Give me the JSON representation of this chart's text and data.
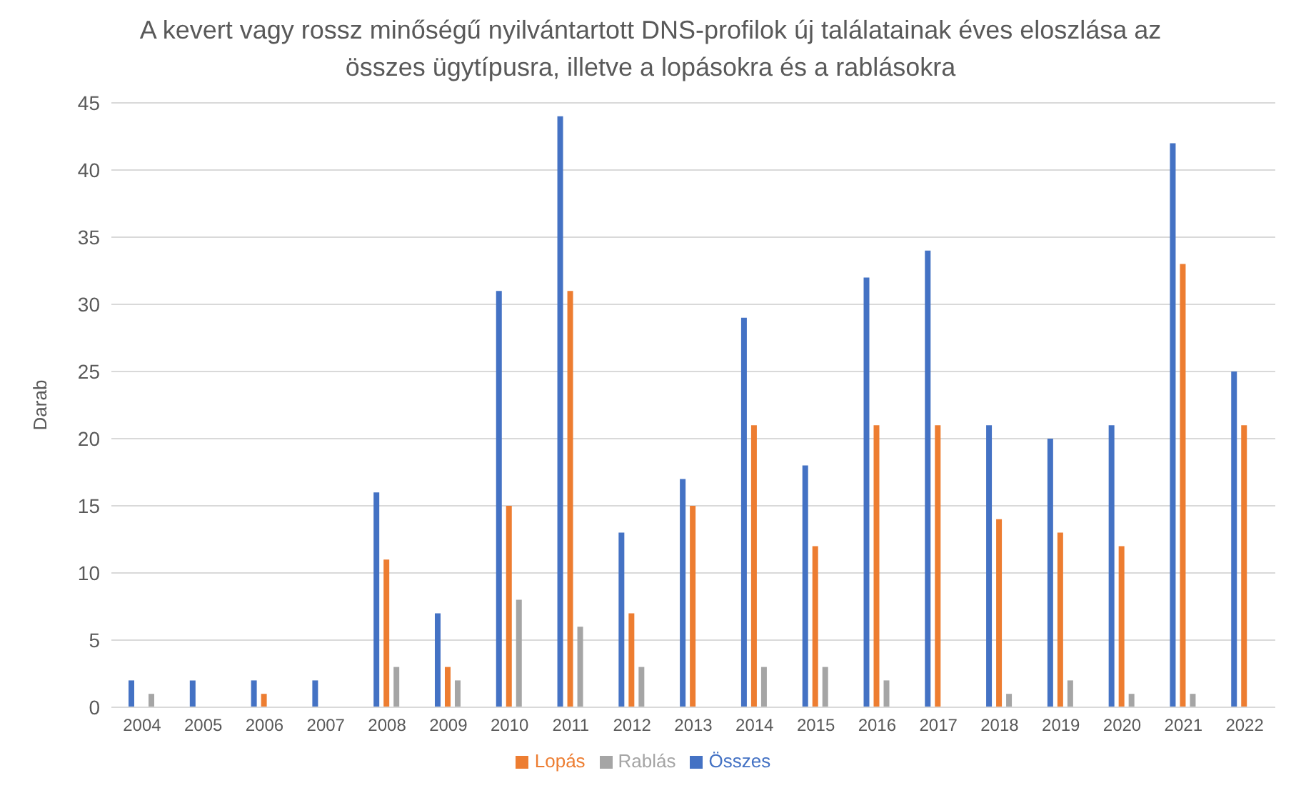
{
  "chart_data": {
    "type": "bar",
    "title": "A kevert vagy rossz minőségű nyilvántartott DNS-profilok új találatainak éves eloszlása az összes ügytípusra, illetve a lopásokra és a rablásokra",
    "ylabel": "Darab",
    "categories": [
      "2004",
      "2005",
      "2006",
      "2007",
      "2008",
      "2009",
      "2010",
      "2011",
      "2012",
      "2013",
      "2014",
      "2015",
      "2016",
      "2017",
      "2018",
      "2019",
      "2020",
      "2021",
      "2022"
    ],
    "series": [
      {
        "name": "Összes",
        "color": "#4472c4",
        "values": [
          2,
          2,
          2,
          2,
          16,
          7,
          31,
          44,
          13,
          17,
          29,
          18,
          32,
          34,
          21,
          20,
          21,
          42,
          25
        ]
      },
      {
        "name": "Lopás",
        "color": "#ed7d31",
        "values": [
          0,
          0,
          1,
          0,
          11,
          3,
          15,
          31,
          7,
          15,
          21,
          12,
          21,
          21,
          14,
          13,
          12,
          33,
          21
        ]
      },
      {
        "name": "Rablás",
        "color": "#a5a5a5",
        "values": [
          1,
          0,
          0,
          0,
          3,
          2,
          8,
          6,
          3,
          0,
          3,
          3,
          2,
          0,
          1,
          2,
          1,
          1,
          0
        ]
      }
    ],
    "ylim": [
      0,
      45
    ],
    "yticks": [
      0,
      5,
      10,
      15,
      20,
      25,
      30,
      35,
      40,
      45
    ],
    "grid": "y",
    "legend": "bottom"
  }
}
